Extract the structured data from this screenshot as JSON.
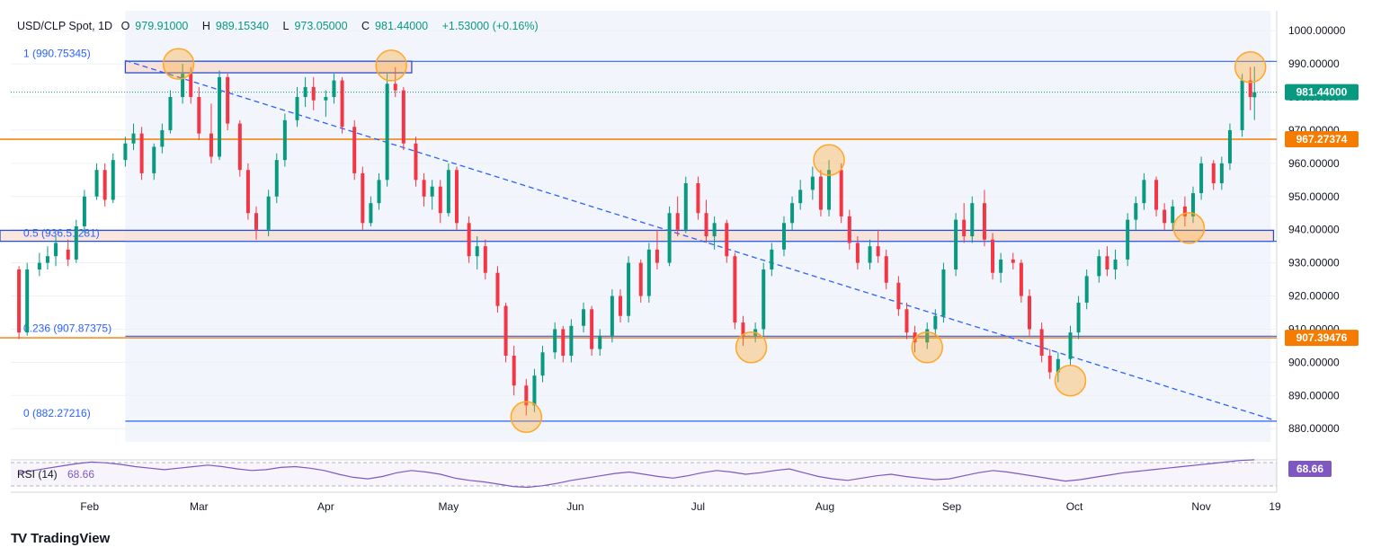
{
  "header": {
    "symbol": "USD/CLP Spot, 1D",
    "open_label": "O",
    "open": "979.91000",
    "high_label": "H",
    "high": "989.15340",
    "low_label": "L",
    "low": "973.05000",
    "close_label": "C",
    "close": "981.44000",
    "change": "+1.53000 (+0.16%)"
  },
  "brand": {
    "name": "TradingView",
    "logo": "TV"
  },
  "colors": {
    "up": "#089981",
    "down": "#f23645",
    "fib": "#2962ff",
    "level": "#f57c00",
    "zone_fill": "#f8d9c9",
    "marker": "#ffa726",
    "rsi": "#7e57c2",
    "price_tag": "#089981",
    "level_tag": "#f57c00"
  },
  "chart_data": {
    "type": "candlestick",
    "symbol": "USD/CLP",
    "timeframe": "1D",
    "ylim": [
      876,
      1006
    ],
    "y_ticks": [
      "1000.00000",
      "990.00000",
      "980.00000",
      "970.00000",
      "960.00000",
      "950.00000",
      "940.00000",
      "930.00000",
      "920.00000",
      "910.00000",
      "900.00000",
      "890.00000",
      "880.00000"
    ],
    "x_ticks": [
      "Feb",
      "Mar",
      "Apr",
      "May",
      "Jun",
      "Jul",
      "Aug",
      "Sep",
      "Oct",
      "Nov",
      "19"
    ],
    "last_price": "981.44000",
    "fib_levels": [
      {
        "label": "1 (990.75345)",
        "value": 990.75345
      },
      {
        "label": "0.5 (936.51281)",
        "value": 936.51281
      },
      {
        "label": "0.236 (907.87375)",
        "value": 907.87375
      },
      {
        "label": "0 (882.27216)",
        "value": 882.27216
      }
    ],
    "horizontal_levels": [
      {
        "label": "967.27374",
        "value": 967.27374
      },
      {
        "label": "907.39476",
        "value": 907.39476
      }
    ],
    "trendline": {
      "start": {
        "date": "2024-02-12",
        "value": 991.0
      },
      "end": {
        "date": "2024-11-19",
        "value": 882.5
      }
    },
    "resistance_zone": {
      "from": "2024-02-12",
      "to": "2024-04-22",
      "low": 987.3,
      "high": 990.8
    },
    "support_zone": {
      "from": "2024-01-17",
      "to": "2024-11-18",
      "low": 936.5,
      "high": 939.8
    },
    "circled_points": [
      {
        "date": "2024-02-25",
        "value": 990
      },
      {
        "date": "2024-04-17",
        "value": 989.5
      },
      {
        "date": "2024-05-20",
        "value": 883.5
      },
      {
        "date": "2024-07-14",
        "value": 904.5
      },
      {
        "date": "2024-08-02",
        "value": 961
      },
      {
        "date": "2024-08-26",
        "value": 904.5
      },
      {
        "date": "2024-09-30",
        "value": 894.5
      },
      {
        "date": "2024-10-29",
        "value": 940.5
      },
      {
        "date": "2024-11-13",
        "value": 989
      }
    ],
    "candles": [
      {
        "date": "2024-01-17",
        "o": 928,
        "h": 929,
        "l": 907,
        "c": 909
      },
      {
        "date": "2024-01-19",
        "o": 909,
        "h": 930,
        "l": 908,
        "c": 928
      },
      {
        "date": "2024-01-22",
        "o": 928,
        "h": 933,
        "l": 926,
        "c": 930
      },
      {
        "date": "2024-01-24",
        "o": 930,
        "h": 935,
        "l": 928,
        "c": 932
      },
      {
        "date": "2024-01-26",
        "o": 932,
        "h": 938,
        "l": 929,
        "c": 936
      },
      {
        "date": "2024-01-29",
        "o": 934,
        "h": 937,
        "l": 929,
        "c": 931
      },
      {
        "date": "2024-01-31",
        "o": 931,
        "h": 943,
        "l": 930,
        "c": 941
      },
      {
        "date": "2024-02-02",
        "o": 941,
        "h": 952,
        "l": 939,
        "c": 950
      },
      {
        "date": "2024-02-05",
        "o": 950,
        "h": 960,
        "l": 949,
        "c": 958
      },
      {
        "date": "2024-02-07",
        "o": 958,
        "h": 960,
        "l": 947,
        "c": 949
      },
      {
        "date": "2024-02-09",
        "o": 949,
        "h": 963,
        "l": 948,
        "c": 961
      },
      {
        "date": "2024-02-12",
        "o": 961,
        "h": 968,
        "l": 959,
        "c": 966
      },
      {
        "date": "2024-02-14",
        "o": 966,
        "h": 972,
        "l": 964,
        "c": 969
      },
      {
        "date": "2024-02-16",
        "o": 969,
        "h": 971,
        "l": 955,
        "c": 957
      },
      {
        "date": "2024-02-19",
        "o": 957,
        "h": 966,
        "l": 955,
        "c": 965
      },
      {
        "date": "2024-02-21",
        "o": 965,
        "h": 972,
        "l": 963,
        "c": 970
      },
      {
        "date": "2024-02-23",
        "o": 970,
        "h": 982,
        "l": 969,
        "c": 980
      },
      {
        "date": "2024-02-26",
        "o": 980,
        "h": 990,
        "l": 978,
        "c": 987
      },
      {
        "date": "2024-02-28",
        "o": 987,
        "h": 989,
        "l": 978,
        "c": 980
      },
      {
        "date": "2024-03-01",
        "o": 980,
        "h": 983,
        "l": 967,
        "c": 969
      },
      {
        "date": "2024-03-04",
        "o": 969,
        "h": 978,
        "l": 960,
        "c": 962
      },
      {
        "date": "2024-03-06",
        "o": 962,
        "h": 988,
        "l": 961,
        "c": 986
      },
      {
        "date": "2024-03-08",
        "o": 986,
        "h": 987,
        "l": 970,
        "c": 972
      },
      {
        "date": "2024-03-11",
        "o": 972,
        "h": 973,
        "l": 956,
        "c": 958
      },
      {
        "date": "2024-03-13",
        "o": 958,
        "h": 960,
        "l": 943,
        "c": 945
      },
      {
        "date": "2024-03-15",
        "o": 945,
        "h": 947,
        "l": 937,
        "c": 940
      },
      {
        "date": "2024-03-18",
        "o": 940,
        "h": 952,
        "l": 938,
        "c": 950
      },
      {
        "date": "2024-03-20",
        "o": 950,
        "h": 963,
        "l": 948,
        "c": 961
      },
      {
        "date": "2024-03-22",
        "o": 961,
        "h": 975,
        "l": 959,
        "c": 973
      },
      {
        "date": "2024-03-25",
        "o": 973,
        "h": 983,
        "l": 971,
        "c": 980
      },
      {
        "date": "2024-03-27",
        "o": 980,
        "h": 986,
        "l": 977,
        "c": 983
      },
      {
        "date": "2024-03-29",
        "o": 983,
        "h": 986,
        "l": 976,
        "c": 979
      },
      {
        "date": "2024-04-01",
        "o": 979,
        "h": 982,
        "l": 974,
        "c": 980
      },
      {
        "date": "2024-04-03",
        "o": 980,
        "h": 987,
        "l": 978,
        "c": 985
      },
      {
        "date": "2024-04-05",
        "o": 985,
        "h": 986,
        "l": 969,
        "c": 971
      },
      {
        "date": "2024-04-08",
        "o": 971,
        "h": 973,
        "l": 955,
        "c": 957
      },
      {
        "date": "2024-04-10",
        "o": 957,
        "h": 959,
        "l": 940,
        "c": 942
      },
      {
        "date": "2024-04-12",
        "o": 942,
        "h": 950,
        "l": 941,
        "c": 948
      },
      {
        "date": "2024-04-14",
        "o": 948,
        "h": 957,
        "l": 946,
        "c": 955
      },
      {
        "date": "2024-04-16",
        "o": 955,
        "h": 987,
        "l": 953,
        "c": 984
      },
      {
        "date": "2024-04-18",
        "o": 984,
        "h": 989,
        "l": 980,
        "c": 982
      },
      {
        "date": "2024-04-20",
        "o": 982,
        "h": 983,
        "l": 964,
        "c": 966
      },
      {
        "date": "2024-04-23",
        "o": 966,
        "h": 968,
        "l": 953,
        "c": 955
      },
      {
        "date": "2024-04-25",
        "o": 955,
        "h": 957,
        "l": 947,
        "c": 950
      },
      {
        "date": "2024-04-27",
        "o": 950,
        "h": 955,
        "l": 946,
        "c": 953
      },
      {
        "date": "2024-04-29",
        "o": 953,
        "h": 955,
        "l": 942,
        "c": 945
      },
      {
        "date": "2024-05-01",
        "o": 945,
        "h": 960,
        "l": 944,
        "c": 958
      },
      {
        "date": "2024-05-03",
        "o": 958,
        "h": 959,
        "l": 940,
        "c": 942
      },
      {
        "date": "2024-05-06",
        "o": 942,
        "h": 944,
        "l": 930,
        "c": 932
      },
      {
        "date": "2024-05-08",
        "o": 932,
        "h": 938,
        "l": 928,
        "c": 935
      },
      {
        "date": "2024-05-10",
        "o": 935,
        "h": 937,
        "l": 925,
        "c": 927
      },
      {
        "date": "2024-05-13",
        "o": 927,
        "h": 929,
        "l": 915,
        "c": 917
      },
      {
        "date": "2024-05-15",
        "o": 917,
        "h": 918,
        "l": 900,
        "c": 902
      },
      {
        "date": "2024-05-17",
        "o": 902,
        "h": 905,
        "l": 890,
        "c": 893
      },
      {
        "date": "2024-05-20",
        "o": 893,
        "h": 895,
        "l": 884,
        "c": 887
      },
      {
        "date": "2024-05-22",
        "o": 887,
        "h": 898,
        "l": 885,
        "c": 896
      },
      {
        "date": "2024-05-24",
        "o": 896,
        "h": 905,
        "l": 894,
        "c": 903
      },
      {
        "date": "2024-05-27",
        "o": 903,
        "h": 912,
        "l": 901,
        "c": 910
      },
      {
        "date": "2024-05-29",
        "o": 910,
        "h": 911,
        "l": 900,
        "c": 902
      },
      {
        "date": "2024-05-31",
        "o": 902,
        "h": 913,
        "l": 900,
        "c": 911
      },
      {
        "date": "2024-06-03",
        "o": 911,
        "h": 918,
        "l": 909,
        "c": 916
      },
      {
        "date": "2024-06-05",
        "o": 916,
        "h": 917,
        "l": 902,
        "c": 904
      },
      {
        "date": "2024-06-07",
        "o": 904,
        "h": 910,
        "l": 902,
        "c": 908
      },
      {
        "date": "2024-06-10",
        "o": 908,
        "h": 922,
        "l": 906,
        "c": 920
      },
      {
        "date": "2024-06-12",
        "o": 920,
        "h": 922,
        "l": 912,
        "c": 914
      },
      {
        "date": "2024-06-14",
        "o": 914,
        "h": 932,
        "l": 912,
        "c": 930
      },
      {
        "date": "2024-06-17",
        "o": 930,
        "h": 931,
        "l": 918,
        "c": 920
      },
      {
        "date": "2024-06-19",
        "o": 920,
        "h": 936,
        "l": 918,
        "c": 934
      },
      {
        "date": "2024-06-21",
        "o": 934,
        "h": 940,
        "l": 928,
        "c": 930
      },
      {
        "date": "2024-06-24",
        "o": 930,
        "h": 947,
        "l": 929,
        "c": 945
      },
      {
        "date": "2024-06-26",
        "o": 945,
        "h": 950,
        "l": 938,
        "c": 940
      },
      {
        "date": "2024-06-28",
        "o": 940,
        "h": 956,
        "l": 939,
        "c": 954
      },
      {
        "date": "2024-07-01",
        "o": 954,
        "h": 956,
        "l": 943,
        "c": 945
      },
      {
        "date": "2024-07-03",
        "o": 945,
        "h": 949,
        "l": 936,
        "c": 938
      },
      {
        "date": "2024-07-05",
        "o": 938,
        "h": 944,
        "l": 934,
        "c": 942
      },
      {
        "date": "2024-07-08",
        "o": 942,
        "h": 943,
        "l": 930,
        "c": 932
      },
      {
        "date": "2024-07-10",
        "o": 932,
        "h": 933,
        "l": 910,
        "c": 912
      },
      {
        "date": "2024-07-12",
        "o": 912,
        "h": 914,
        "l": 905,
        "c": 908
      },
      {
        "date": "2024-07-15",
        "o": 908,
        "h": 912,
        "l": 906,
        "c": 910
      },
      {
        "date": "2024-07-17",
        "o": 910,
        "h": 930,
        "l": 908,
        "c": 928
      },
      {
        "date": "2024-07-19",
        "o": 928,
        "h": 936,
        "l": 926,
        "c": 934
      },
      {
        "date": "2024-07-22",
        "o": 934,
        "h": 944,
        "l": 932,
        "c": 942
      },
      {
        "date": "2024-07-24",
        "o": 942,
        "h": 950,
        "l": 940,
        "c": 948
      },
      {
        "date": "2024-07-26",
        "o": 948,
        "h": 955,
        "l": 946,
        "c": 952
      },
      {
        "date": "2024-07-29",
        "o": 952,
        "h": 959,
        "l": 949,
        "c": 956
      },
      {
        "date": "2024-07-31",
        "o": 956,
        "h": 958,
        "l": 944,
        "c": 946
      },
      {
        "date": "2024-08-02",
        "o": 946,
        "h": 961,
        "l": 944,
        "c": 958
      },
      {
        "date": "2024-08-05",
        "o": 958,
        "h": 960,
        "l": 942,
        "c": 944
      },
      {
        "date": "2024-08-07",
        "o": 944,
        "h": 946,
        "l": 934,
        "c": 936
      },
      {
        "date": "2024-08-09",
        "o": 936,
        "h": 938,
        "l": 928,
        "c": 930
      },
      {
        "date": "2024-08-12",
        "o": 930,
        "h": 937,
        "l": 928,
        "c": 935
      },
      {
        "date": "2024-08-14",
        "o": 935,
        "h": 940,
        "l": 930,
        "c": 932
      },
      {
        "date": "2024-08-16",
        "o": 932,
        "h": 934,
        "l": 922,
        "c": 924
      },
      {
        "date": "2024-08-19",
        "o": 924,
        "h": 926,
        "l": 914,
        "c": 916
      },
      {
        "date": "2024-08-21",
        "o": 916,
        "h": 918,
        "l": 907,
        "c": 909
      },
      {
        "date": "2024-08-23",
        "o": 909,
        "h": 911,
        "l": 903,
        "c": 906
      },
      {
        "date": "2024-08-26",
        "o": 906,
        "h": 912,
        "l": 904,
        "c": 910
      },
      {
        "date": "2024-08-28",
        "o": 910,
        "h": 916,
        "l": 908,
        "c": 914
      },
      {
        "date": "2024-08-30",
        "o": 914,
        "h": 930,
        "l": 912,
        "c": 928
      },
      {
        "date": "2024-09-02",
        "o": 928,
        "h": 945,
        "l": 926,
        "c": 943
      },
      {
        "date": "2024-09-04",
        "o": 943,
        "h": 948,
        "l": 936,
        "c": 938
      },
      {
        "date": "2024-09-06",
        "o": 938,
        "h": 950,
        "l": 936,
        "c": 948
      },
      {
        "date": "2024-09-09",
        "o": 948,
        "h": 952,
        "l": 935,
        "c": 937
      },
      {
        "date": "2024-09-11",
        "o": 937,
        "h": 939,
        "l": 925,
        "c": 927
      },
      {
        "date": "2024-09-13",
        "o": 927,
        "h": 933,
        "l": 924,
        "c": 931
      },
      {
        "date": "2024-09-16",
        "o": 931,
        "h": 933,
        "l": 928,
        "c": 930
      },
      {
        "date": "2024-09-18",
        "o": 930,
        "h": 931,
        "l": 918,
        "c": 920
      },
      {
        "date": "2024-09-20",
        "o": 920,
        "h": 922,
        "l": 908,
        "c": 910
      },
      {
        "date": "2024-09-23",
        "o": 910,
        "h": 912,
        "l": 900,
        "c": 902
      },
      {
        "date": "2024-09-25",
        "o": 902,
        "h": 904,
        "l": 895,
        "c": 897
      },
      {
        "date": "2024-09-27",
        "o": 897,
        "h": 903,
        "l": 894,
        "c": 901
      },
      {
        "date": "2024-09-30",
        "o": 901,
        "h": 911,
        "l": 899,
        "c": 909
      },
      {
        "date": "2024-10-02",
        "o": 909,
        "h": 920,
        "l": 907,
        "c": 918
      },
      {
        "date": "2024-10-04",
        "o": 918,
        "h": 928,
        "l": 916,
        "c": 926
      },
      {
        "date": "2024-10-07",
        "o": 926,
        "h": 934,
        "l": 924,
        "c": 932
      },
      {
        "date": "2024-10-09",
        "o": 932,
        "h": 935,
        "l": 926,
        "c": 928
      },
      {
        "date": "2024-10-11",
        "o": 928,
        "h": 934,
        "l": 925,
        "c": 931
      },
      {
        "date": "2024-10-14",
        "o": 931,
        "h": 945,
        "l": 929,
        "c": 943
      },
      {
        "date": "2024-10-16",
        "o": 943,
        "h": 950,
        "l": 940,
        "c": 948
      },
      {
        "date": "2024-10-18",
        "o": 948,
        "h": 957,
        "l": 946,
        "c": 955
      },
      {
        "date": "2024-10-21",
        "o": 955,
        "h": 956,
        "l": 944,
        "c": 946
      },
      {
        "date": "2024-10-23",
        "o": 946,
        "h": 948,
        "l": 940,
        "c": 942
      },
      {
        "date": "2024-10-25",
        "o": 942,
        "h": 949,
        "l": 940,
        "c": 947
      },
      {
        "date": "2024-10-28",
        "o": 947,
        "h": 950,
        "l": 941,
        "c": 944
      },
      {
        "date": "2024-10-30",
        "o": 944,
        "h": 953,
        "l": 942,
        "c": 951
      },
      {
        "date": "2024-11-01",
        "o": 951,
        "h": 962,
        "l": 949,
        "c": 960
      },
      {
        "date": "2024-11-04",
        "o": 960,
        "h": 961,
        "l": 952,
        "c": 954
      },
      {
        "date": "2024-11-06",
        "o": 954,
        "h": 962,
        "l": 952,
        "c": 960
      },
      {
        "date": "2024-11-08",
        "o": 960,
        "h": 972,
        "l": 958,
        "c": 970
      },
      {
        "date": "2024-11-11",
        "o": 970,
        "h": 987,
        "l": 968,
        "c": 985
      },
      {
        "date": "2024-11-13",
        "o": 985,
        "h": 989,
        "l": 976,
        "c": 980
      },
      {
        "date": "2024-11-14",
        "o": 979.91,
        "h": 989.1534,
        "l": 973.05,
        "c": 981.44
      }
    ],
    "rsi": {
      "label": "RSI (14)",
      "value": "68.66",
      "series": [
        52,
        55,
        58,
        61,
        64,
        66,
        65,
        63,
        60,
        58,
        56,
        58,
        60,
        62,
        60,
        57,
        55,
        56,
        59,
        60,
        58,
        55,
        50,
        46,
        44,
        47,
        52,
        55,
        53,
        50,
        45,
        42,
        40,
        37,
        34,
        33,
        35,
        38,
        42,
        45,
        48,
        51,
        53,
        50,
        47,
        45,
        48,
        52,
        55,
        53,
        50,
        52,
        55,
        57,
        52,
        47,
        44,
        42,
        45,
        48,
        50,
        47,
        45,
        43,
        44,
        48,
        52,
        55,
        53,
        50,
        47,
        44,
        41,
        43,
        46,
        49,
        52,
        54,
        56,
        58,
        60,
        62,
        64,
        66,
        68,
        69
      ]
    }
  }
}
